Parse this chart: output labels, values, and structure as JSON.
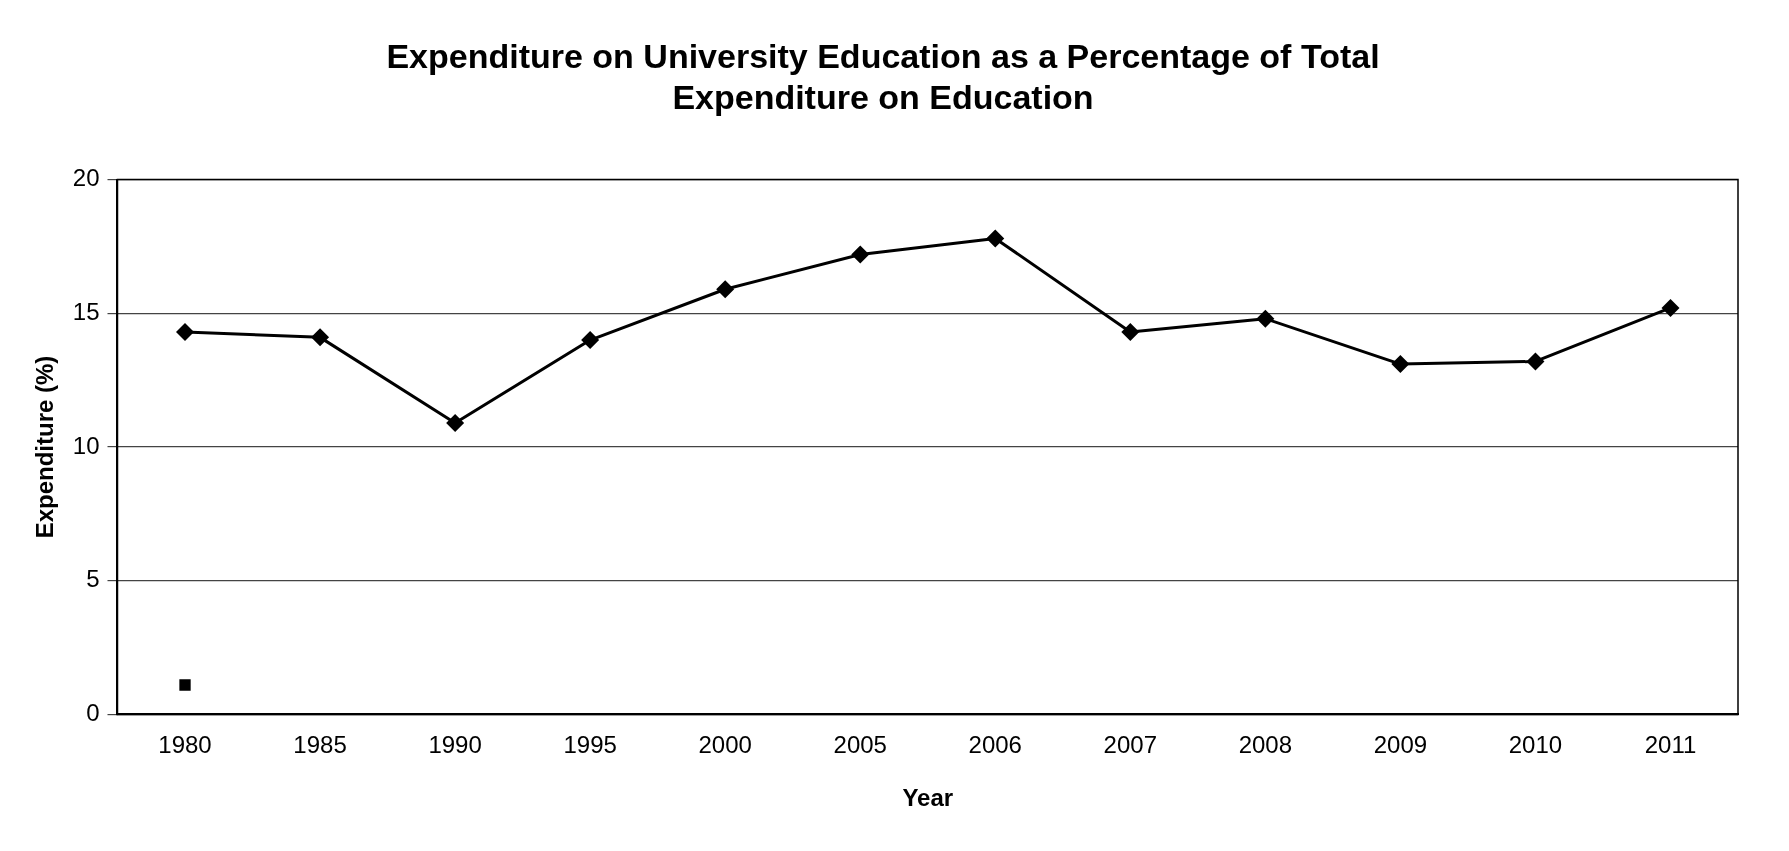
{
  "chart_data": {
    "type": "line",
    "title": "Expenditure on University Education as a Percentage of Total Expenditure on Education",
    "xlabel": "Year",
    "ylabel": "Expenditure (%)",
    "categories": [
      "1980",
      "1985",
      "1990",
      "1995",
      "2000",
      "2005",
      "2006",
      "2007",
      "2008",
      "2009",
      "2010",
      "2011"
    ],
    "series": [
      {
        "color": "#000000",
        "marker": "diamond",
        "values": [
          14.3,
          14.1,
          10.9,
          14.0,
          15.9,
          17.2,
          17.8,
          14.3,
          14.8,
          13.1,
          13.2,
          15.2
        ]
      },
      {
        "type": "scatter",
        "color": "#000000",
        "marker": "square",
        "values": [
          1.1,
          null,
          null,
          null,
          null,
          null,
          null,
          null,
          null,
          null,
          null,
          null
        ]
      }
    ],
    "ylim": [
      0,
      20
    ],
    "yticks": [
      0,
      5,
      10,
      15,
      20
    ],
    "grid": "y",
    "legend": false,
    "line_style": "solid"
  }
}
